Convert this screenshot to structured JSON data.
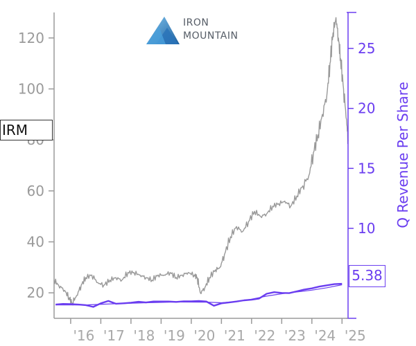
{
  "chart_data": {
    "type": "line",
    "ticker": "IRM",
    "logo_text": [
      "IRON",
      "MOUNTAIN"
    ],
    "y_left": {
      "ticks": [
        20,
        40,
        60,
        80,
        100,
        120
      ],
      "range": [
        10,
        130
      ]
    },
    "y_right": {
      "label": "Q Revenue Per Share",
      "ticks": [
        10,
        15,
        20,
        25
      ],
      "range": [
        2.5,
        28
      ]
    },
    "x_axis": {
      "ticks": [
        "'16",
        "'17",
        "'18",
        "'19",
        "'20",
        "'21",
        "'22",
        "'23",
        "'24",
        "'25"
      ],
      "tick_years": [
        2016,
        2017,
        2018,
        2019,
        2020,
        2021,
        2022,
        2023,
        2024,
        2025
      ],
      "range": [
        2015.45,
        2025.2
      ]
    },
    "last_value_label": "5.38",
    "series": [
      {
        "color": "#999999",
        "axis": "left",
        "x": [
          2015.45,
          2015.6,
          2015.8,
          2015.95,
          2016.05,
          2016.2,
          2016.35,
          2016.5,
          2016.7,
          2016.9,
          2017.1,
          2017.3,
          2017.5,
          2017.7,
          2017.9,
          2018.1,
          2018.3,
          2018.5,
          2018.7,
          2018.9,
          2019.1,
          2019.3,
          2019.5,
          2019.7,
          2019.9,
          2020.1,
          2020.2,
          2020.3,
          2020.45,
          2020.6,
          2020.8,
          2020.95,
          2021.1,
          2021.3,
          2021.5,
          2021.7,
          2021.9,
          2022.1,
          2022.3,
          2022.5,
          2022.7,
          2022.9,
          2023.1,
          2023.3,
          2023.5,
          2023.7,
          2023.9,
          2024.05,
          2024.2,
          2024.35,
          2024.5,
          2024.6,
          2024.7,
          2024.8,
          2024.88,
          2024.95,
          2025.05,
          2025.15,
          2025.2
        ],
        "values": [
          25,
          23,
          21,
          18,
          16,
          19,
          23,
          26,
          27,
          24,
          23,
          25,
          26,
          25,
          28,
          28,
          27,
          26,
          25,
          27,
          27,
          28,
          26,
          27,
          28,
          27,
          26,
          20,
          22,
          26,
          29,
          30,
          35,
          42,
          46,
          44,
          48,
          52,
          50,
          51,
          54,
          55,
          56,
          54,
          58,
          62,
          66,
          75,
          82,
          90,
          98,
          110,
          122,
          128,
          120,
          112,
          100,
          88,
          80
        ]
      },
      {
        "color": "#6a3df0",
        "axis": "right",
        "x": [
          2015.5,
          2015.75,
          2016.0,
          2016.25,
          2016.5,
          2016.75,
          2017.0,
          2017.25,
          2017.5,
          2017.75,
          2018.0,
          2018.25,
          2018.5,
          2018.75,
          2019.0,
          2019.25,
          2019.5,
          2019.75,
          2020.0,
          2020.25,
          2020.5,
          2020.75,
          2021.0,
          2021.25,
          2021.5,
          2021.75,
          2022.0,
          2022.25,
          2022.5,
          2022.75,
          2023.0,
          2023.25,
          2023.5,
          2023.75,
          2024.0,
          2024.25,
          2024.5,
          2024.75,
          2025.0
        ],
        "values": [
          3.65,
          3.7,
          3.68,
          3.65,
          3.6,
          3.45,
          3.75,
          3.95,
          3.72,
          3.75,
          3.8,
          3.88,
          3.82,
          3.9,
          3.9,
          3.9,
          3.87,
          3.92,
          3.92,
          3.95,
          3.9,
          3.55,
          3.75,
          3.82,
          3.9,
          4.0,
          4.05,
          4.15,
          4.55,
          4.68,
          4.62,
          4.6,
          4.75,
          4.9,
          5.0,
          5.15,
          5.25,
          5.35,
          5.38
        ]
      },
      {
        "color": "#6a3df0",
        "axis": "right",
        "x": [
          2015.5,
          2016.5,
          2017.5,
          2018.5,
          2019.5,
          2020.5,
          2021.0,
          2021.5,
          2022.0,
          2022.5,
          2023.0,
          2023.5,
          2024.0,
          2024.5,
          2025.0
        ],
        "values": [
          3.62,
          3.62,
          3.72,
          3.8,
          3.86,
          3.85,
          3.8,
          3.9,
          4.1,
          4.35,
          4.55,
          4.7,
          4.85,
          5.05,
          5.3
        ]
      }
    ]
  }
}
